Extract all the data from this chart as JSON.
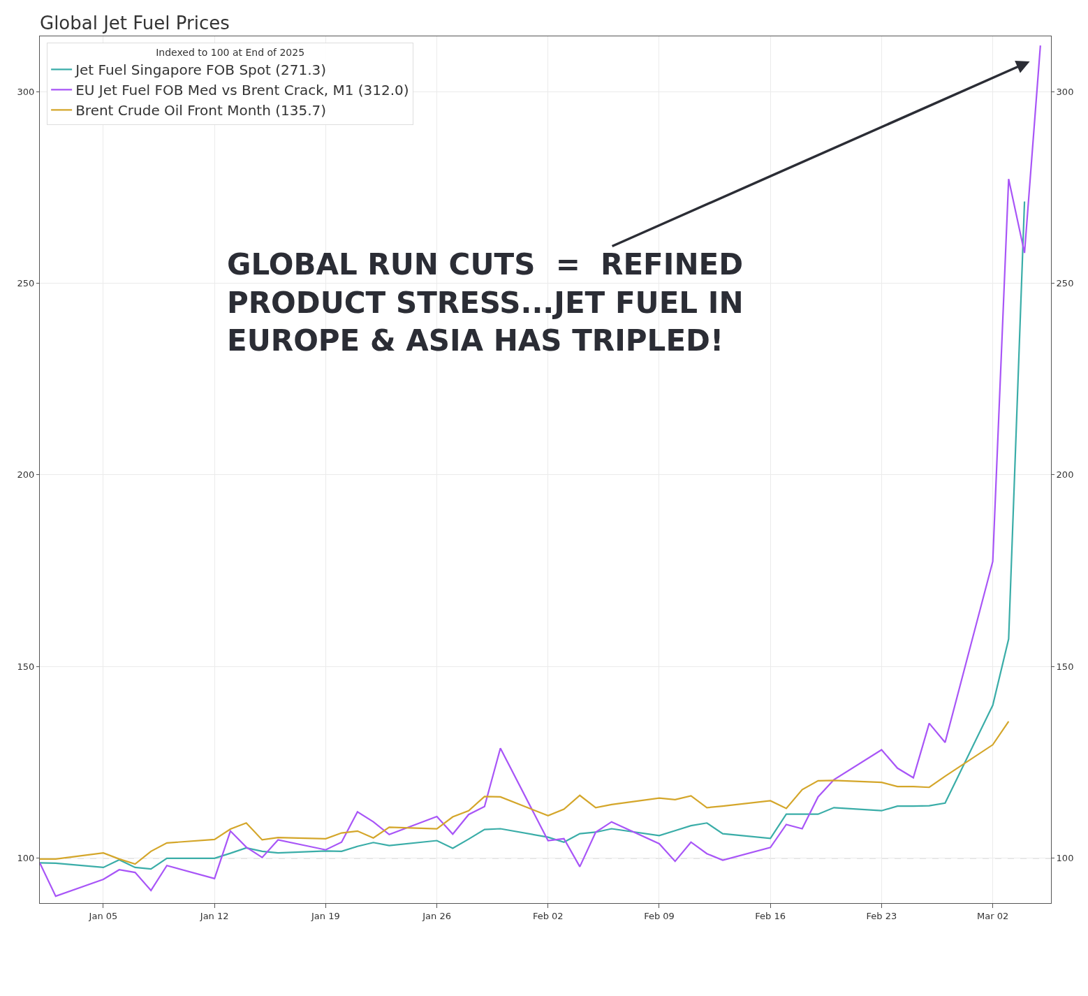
{
  "chart_data": {
    "type": "line",
    "title": "Global Jet Fuel Prices",
    "legend_title": "Indexed to 100 at End of 2025",
    "x": [
      "--01-01",
      "--01-02",
      "--01-05",
      "--01-06",
      "--01-07",
      "--01-08",
      "--01-09",
      "--01-12",
      "--01-13",
      "--01-14",
      "--01-15",
      "--01-16",
      "--01-19",
      "--01-20",
      "--01-21",
      "--01-22",
      "--01-23",
      "--01-26",
      "--01-27",
      "--01-28",
      "--01-29",
      "--01-30",
      "--02-02",
      "--02-03",
      "--02-04",
      "--02-05",
      "--02-06",
      "--02-09",
      "--02-10",
      "--02-11",
      "--02-12",
      "--02-13",
      "--02-16",
      "--02-17",
      "--02-18",
      "--02-19",
      "--02-20",
      "--02-23",
      "--02-24",
      "--02-25",
      "--02-26",
      "--02-27",
      "--03-02",
      "--03-03",
      "--03-04",
      "--03-05"
    ],
    "series": [
      {
        "name": "Jet Fuel Singapore FOB Spot (271.3)",
        "color": "#3aada8",
        "values": [
          98.8,
          98.7,
          97.6,
          99.6,
          97.6,
          97.2,
          100,
          100,
          101.3,
          102.7,
          101.8,
          101.4,
          101.9,
          101.8,
          103.1,
          104.1,
          103.3,
          104.6,
          102.6,
          105,
          107.5,
          107.7,
          105.5,
          104.2,
          106.4,
          106.8,
          107.7,
          105.9,
          107.2,
          108.5,
          109.2,
          106.4,
          105.2,
          111.5,
          111.5,
          111.5,
          113.2,
          112.4,
          113.6,
          113.6,
          113.7,
          114.4,
          139.9,
          157.2,
          271.3,
          null
        ]
      },
      {
        "name": "EU Jet Fuel FOB Med vs Brent Crack, M1 (312.0)",
        "color": "#a855f7",
        "values": [
          98.8,
          90.1,
          94.5,
          97,
          96.3,
          91.6,
          98.1,
          94.7,
          107.1,
          102.9,
          100.2,
          104.8,
          102.2,
          104.2,
          112.1,
          109.5,
          106.2,
          110.9,
          106.3,
          111.4,
          113.5,
          128.7,
          104.6,
          105.1,
          97.8,
          106.8,
          109.5,
          103.8,
          99.2,
          104.2,
          101.2,
          99.5,
          102.8,
          108.8,
          107.7,
          116,
          120.5,
          128.3,
          123.5,
          121,
          135.2,
          130.2,
          177.4,
          277.2,
          257.9,
          312.0
        ]
      },
      {
        "name": "Brent Crude Oil Front Month (135.7)",
        "color": "#d4a62a",
        "values": [
          99.8,
          99.8,
          101.4,
          99.8,
          98.5,
          101.8,
          104,
          104.9,
          107.6,
          109.2,
          104.8,
          105.4,
          105.1,
          106.6,
          107.1,
          105.3,
          108.1,
          107.7,
          110.8,
          112.4,
          116.1,
          116,
          111.1,
          112.8,
          116.4,
          113.2,
          114,
          115.7,
          115.3,
          116.3,
          113.2,
          113.6,
          115,
          113,
          117.9,
          120.2,
          120.3,
          119.8,
          118.7,
          118.7,
          118.5,
          121.4,
          129.6,
          135.7,
          null,
          null
        ]
      }
    ],
    "xlim": [
      "--01-01",
      "--03-05T16:00"
    ],
    "xticks": [
      {
        "value": "--01-05",
        "label": "Jan 05"
      },
      {
        "value": "--01-12",
        "label": "Jan 12"
      },
      {
        "value": "--01-19",
        "label": "Jan 19"
      },
      {
        "value": "--01-26",
        "label": "Jan 26"
      },
      {
        "value": "--02-02",
        "label": "Feb 02"
      },
      {
        "value": "--02-09",
        "label": "Feb 09"
      },
      {
        "value": "--02-16",
        "label": "Feb 16"
      },
      {
        "value": "--02-23",
        "label": "Feb 23"
      },
      {
        "value": "--03-02",
        "label": "Mar 02"
      }
    ],
    "ylim": [
      88.3,
      314.4
    ],
    "yticks": [
      100,
      150,
      200,
      250,
      300
    ],
    "y2lim": [
      88.3,
      314.4
    ],
    "y2ticks": [
      100,
      150,
      200,
      250,
      300
    ],
    "ref_lines": [
      {
        "axis": "y",
        "value": 100,
        "color": "#cccccc",
        "line_style": "dashed"
      }
    ],
    "annotations": [
      "GLOBAL RUN CUTS  =  REFINED\nPRODUCT STRESS...JET FUEL IN\nEUROPE & ASIA HAS TRIPLED!"
    ],
    "grid": true,
    "legend": "top left",
    "line_style": "solid",
    "marker": "none"
  }
}
